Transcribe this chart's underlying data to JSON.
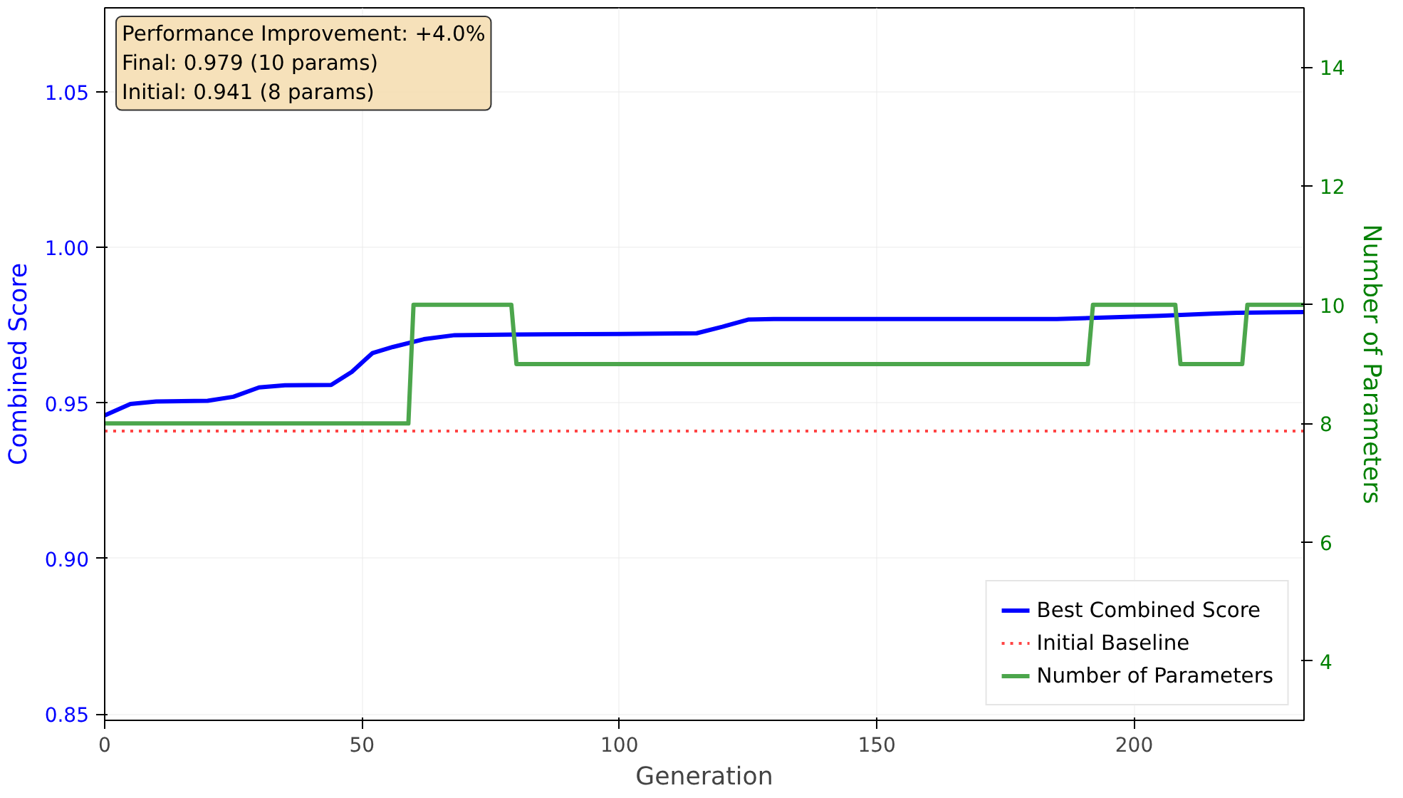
{
  "chart_data": {
    "type": "line",
    "xlabel": "Generation",
    "ylabel": "Combined Score",
    "y2label": "Number of Parameters",
    "xlim": [
      0,
      233
    ],
    "xticks": [
      0,
      50,
      100,
      150,
      200
    ],
    "ylim": [
      0.848,
      1.077
    ],
    "yticks": [
      0.85,
      {
        "value": 0.9,
        "label": "0.90"
      },
      0.95,
      {
        "value": 1.0,
        "label": "1.00"
      },
      1.05
    ],
    "y2lim": [
      3,
      15
    ],
    "y2ticks": [
      4,
      6,
      8,
      10,
      12,
      14
    ],
    "grid": true,
    "legend": "bottom right",
    "line_style": "solid",
    "series": [
      {
        "name": "Best Combined Score",
        "color": "#0000ff",
        "x": [
          0,
          5,
          10,
          20,
          25,
          30,
          35,
          44,
          48,
          52,
          56,
          62,
          68,
          80,
          100,
          115,
          120,
          125,
          130,
          185,
          195,
          205,
          215,
          220,
          233
        ],
        "values": [
          0.946,
          0.9497,
          0.9505,
          0.9507,
          0.952,
          0.955,
          0.9557,
          0.9558,
          0.96,
          0.966,
          0.968,
          0.9705,
          0.9718,
          0.972,
          0.9722,
          0.9724,
          0.9745,
          0.9768,
          0.977,
          0.977,
          0.9775,
          0.978,
          0.9787,
          0.979,
          0.9792
        ]
      },
      {
        "name": "Number of Parameters",
        "color": "#4ca64c",
        "axis": "y2",
        "x": [
          0,
          59,
          60,
          79,
          80,
          191,
          192,
          208,
          209,
          221,
          222,
          233
        ],
        "values": [
          8,
          8,
          10,
          10,
          9,
          9,
          10,
          10,
          9,
          9,
          10,
          10
        ]
      }
    ],
    "ref_lines": [
      {
        "axis": "y",
        "value": 0.941,
        "label": "Initial Baseline",
        "color": "#ff4444",
        "line_style": "dotted"
      }
    ],
    "annotations": [
      "Performance Improvement: +4.0%",
      "Final: 0.979 (10 params)",
      "Initial: 0.941 (8 params)"
    ]
  }
}
